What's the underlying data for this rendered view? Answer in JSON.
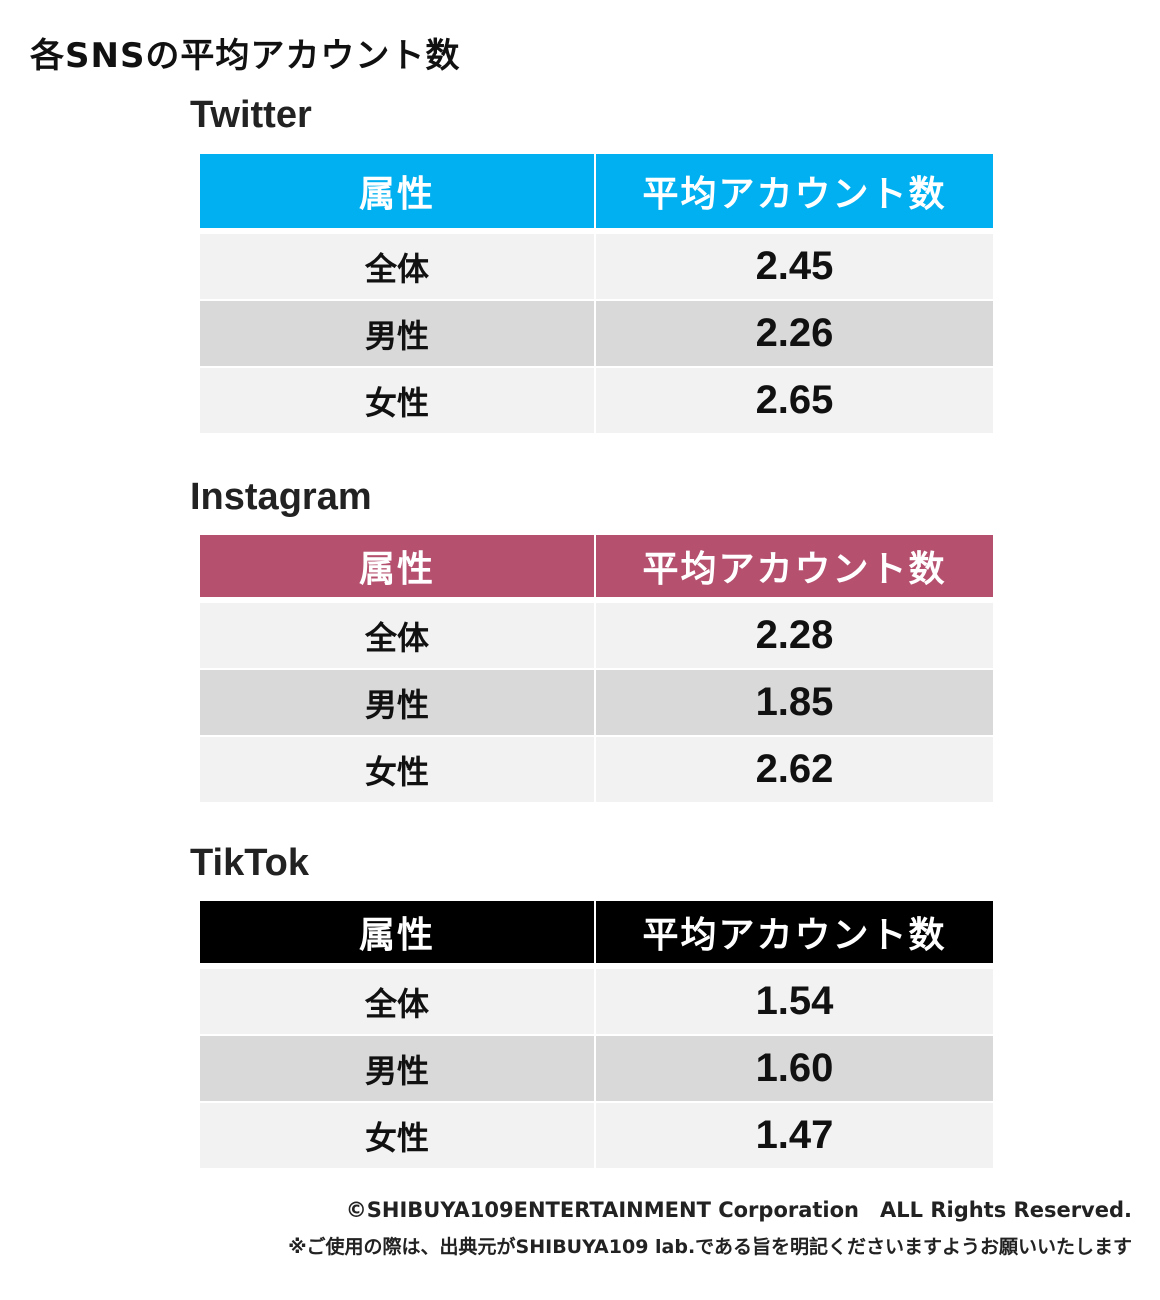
{
  "page_title": "各SNSの平均アカウント数",
  "header": {
    "attribute": "属性",
    "average": "平均アカウント数"
  },
  "colors": {
    "twitter_header": "#00b0f0",
    "instagram_header": "#b5506f",
    "tiktok_header": "#000000",
    "row_light": "#f2f2f2",
    "row_dark": "#d9d9d9"
  },
  "sections": [
    {
      "title": "Twitter",
      "rows": [
        {
          "attribute": "全体",
          "value": "2.45"
        },
        {
          "attribute": "男性",
          "value": "2.26"
        },
        {
          "attribute": "女性",
          "value": "2.65"
        }
      ]
    },
    {
      "title": "Instagram",
      "rows": [
        {
          "attribute": "全体",
          "value": "2.28"
        },
        {
          "attribute": "男性",
          "value": "1.85"
        },
        {
          "attribute": "女性",
          "value": "2.62"
        }
      ]
    },
    {
      "title": "TikTok",
      "rows": [
        {
          "attribute": "全体",
          "value": "1.54"
        },
        {
          "attribute": "男性",
          "value": "1.60"
        },
        {
          "attribute": "女性",
          "value": "1.47"
        }
      ]
    }
  ],
  "footer": {
    "copyright": "©SHIBUYA109ENTERTAINMENT Corporation　ALL Rights Reserved.",
    "notice": "※ご使用の際は、出典元がSHIBUYA109 lab.である旨を明記くださいますようお願いいたします"
  }
}
